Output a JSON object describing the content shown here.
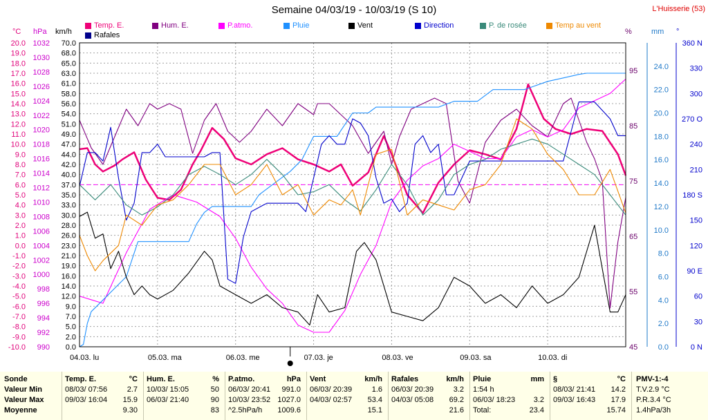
{
  "header": {
    "title": "Semaine 04/03/19 - 10/03/19 (S 10)",
    "station": "L'Huisserie (53)"
  },
  "legend": [
    {
      "label": "Temp. E.",
      "color": "#ee0077"
    },
    {
      "label": "Hum. E.",
      "color": "#800080"
    },
    {
      "label": "P.atmo.",
      "color": "#ff00ff"
    },
    {
      "label": "Pluie",
      "color": "#1e90ff"
    },
    {
      "label": "Vent",
      "color": "#000000"
    },
    {
      "label": "Direction",
      "color": "#0000cc"
    },
    {
      "label": "P. de rosée",
      "color": "#3a8a7a"
    },
    {
      "label": "Temp au vent",
      "color": "#ee8800"
    },
    {
      "label": "Rafales",
      "color": "#00008b"
    }
  ],
  "axis_units": {
    "temp": "°C",
    "press": "hPa",
    "wind": "km/h",
    "hum": "%",
    "rain": "mm",
    "dir": "°"
  },
  "colors": {
    "temp_axis": "#e0007a",
    "press_axis": "#cc00cc",
    "wind_axis": "#000000",
    "hum_axis": "#6a006a",
    "rain_axis": "#1e78c8",
    "dir_axis": "#0000cc",
    "grid": "#a0a0a0",
    "frame": "#000000",
    "ref_line": "#ff00ff"
  },
  "chart_data": {
    "type": "line",
    "x_labels": [
      "04.03. lu",
      "05.03. ma",
      "06.03. me",
      "07.03. je",
      "08.03. ve",
      "09.03. sa",
      "10.03. di"
    ],
    "grid": true,
    "axes": {
      "temp": {
        "unit": "°C",
        "range": [
          -10,
          20
        ],
        "ticks": [
          "20.0",
          "19.0",
          "18.0",
          "17.0",
          "16.0",
          "15.0",
          "14.0",
          "13.0",
          "12.0",
          "11.0",
          "10.0",
          "9.0",
          "8.0",
          "7.0",
          "6.0",
          "5.0",
          "4.0",
          "3.0",
          "2.0",
          "1.0",
          "0.0",
          "-1.0",
          "-2.0",
          "-3.0",
          "-4.0",
          "-5.0",
          "-6.0",
          "-7.0",
          "-8.0",
          "-9.0",
          "-10.0"
        ]
      },
      "press": {
        "unit": "hPa",
        "range": [
          990,
          1032
        ],
        "ticks": [
          "1032",
          "1030",
          "1028",
          "1026",
          "1024",
          "1022",
          "1020",
          "1018",
          "1016",
          "1014",
          "1012",
          "1010",
          "1008",
          "1006",
          "1004",
          "1002",
          "1000",
          "998",
          "996",
          "994",
          "992",
          "990"
        ]
      },
      "wind": {
        "unit": "km/h",
        "range": [
          0,
          70
        ],
        "ticks": [
          "70.0",
          "68.0",
          "65.0",
          "63.0",
          "61.0",
          "58.0",
          "56.0",
          "54.0",
          "51.0",
          "49.0",
          "47.0",
          "44.0",
          "42.0",
          "40.0",
          "37.0",
          "35.0",
          "33.0",
          "30.0",
          "28.0",
          "26.0",
          "23.0",
          "21.0",
          "19.0",
          "16.0",
          "14.0",
          "12.0",
          "9.0",
          "7.0",
          "5.0",
          "2.0",
          "0.0"
        ]
      },
      "hum": {
        "unit": "%",
        "range": [
          45,
          100
        ],
        "ticks": [
          "95",
          "85",
          "75",
          "65",
          "55",
          "45"
        ]
      },
      "rain": {
        "unit": "mm",
        "range": [
          0,
          26
        ],
        "ticks": [
          "24.0",
          "22.0",
          "20.0",
          "18.0",
          "16.0",
          "14.0",
          "12.0",
          "10.0",
          "8.0",
          "6.0",
          "4.0",
          "2.0",
          "0.0"
        ]
      },
      "dir": {
        "unit": "°",
        "range": [
          0,
          360
        ],
        "ticks": [
          "360 N",
          "330",
          "300",
          "270 O",
          "240",
          "210",
          "180 S",
          "150",
          "120",
          "90 E",
          "60",
          "30",
          "0 N"
        ]
      }
    },
    "series": [
      {
        "name": "Temp. E.",
        "axis": "temp",
        "x": [
          0,
          0.1,
          0.2,
          0.3,
          0.45,
          0.55,
          0.7,
          0.85,
          1.0,
          1.15,
          1.3,
          1.45,
          1.55,
          1.7,
          1.85,
          2.0,
          2.2,
          2.4,
          2.6,
          2.8,
          3.0,
          3.2,
          3.35,
          3.5,
          3.7,
          3.9,
          4.0,
          4.2,
          4.4,
          4.6,
          4.8,
          5.0,
          5.2,
          5.4,
          5.6,
          5.75,
          5.95,
          6.1,
          6.3,
          6.5,
          6.7,
          6.9,
          7.0
        ],
        "values": [
          9.5,
          9.6,
          8.0,
          7.3,
          7.9,
          8.5,
          9.2,
          6.5,
          4.7,
          4.5,
          5.5,
          8.0,
          9.3,
          11.6,
          10.5,
          8.6,
          8.0,
          9.0,
          9.6,
          8.5,
          8.0,
          7.3,
          8.0,
          5.9,
          7.2,
          10.8,
          9.0,
          5.0,
          3.2,
          6.2,
          8.0,
          9.4,
          9.0,
          8.5,
          11.5,
          15.9,
          12.5,
          11.5,
          11.0,
          11.5,
          11.3,
          9.0,
          6.9
        ]
      },
      {
        "name": "Hum. E.",
        "axis": "hum",
        "x": [
          0,
          0.15,
          0.3,
          0.45,
          0.6,
          0.75,
          0.9,
          1.0,
          1.15,
          1.3,
          1.45,
          1.6,
          1.75,
          1.9,
          2.05,
          2.2,
          2.4,
          2.6,
          2.8,
          3.0,
          3.05,
          3.2,
          3.35,
          3.5,
          3.7,
          3.9,
          4.0,
          4.1,
          4.25,
          4.4,
          4.55,
          4.7,
          4.85,
          5.0,
          5.2,
          5.4,
          5.6,
          5.8,
          6.0,
          6.2,
          6.3,
          6.5,
          6.6,
          6.7,
          6.8,
          6.9,
          7.0
        ],
        "values": [
          86,
          81,
          78,
          83,
          88,
          85,
          89,
          88,
          89,
          88,
          80,
          86,
          89,
          84,
          82,
          84,
          88,
          85,
          89,
          87,
          89,
          89,
          87,
          85,
          80,
          84,
          78,
          83,
          88,
          89,
          90,
          89,
          75,
          71,
          82,
          86,
          88,
          85,
          83,
          89,
          90,
          82,
          79,
          75,
          52,
          64,
          72
        ]
      },
      {
        "name": "P.atmo.",
        "axis": "press",
        "x": [
          0,
          0.3,
          0.6,
          0.9,
          1.2,
          1.5,
          1.8,
          2.0,
          2.2,
          2.4,
          2.6,
          2.8,
          3.0,
          3.2,
          3.4,
          3.6,
          3.8,
          4.0,
          4.2,
          4.4,
          4.6,
          4.8,
          5.0,
          5.2,
          5.4,
          5.6,
          5.8,
          6.0,
          6.2,
          6.4,
          6.6,
          6.8,
          7.0
        ],
        "values": [
          997,
          996,
          1003,
          1009,
          1011,
          1010,
          1008,
          1005,
          1001,
          998,
          996,
          993,
          992,
          992,
          995,
          1000,
          1004,
          1010,
          1013,
          1015,
          1016,
          1018,
          1017,
          1016,
          1016,
          1019,
          1020,
          1019,
          1020,
          1023,
          1024,
          1025,
          1027
        ]
      },
      {
        "name": "Pluie",
        "axis": "rain",
        "x": [
          0,
          0.05,
          0.1,
          0.15,
          0.3,
          0.45,
          0.6,
          0.75,
          1.4,
          1.5,
          1.6,
          1.7,
          2.2,
          2.3,
          2.5,
          2.7,
          2.85,
          3.0,
          3.3,
          3.5,
          3.7,
          3.8,
          4.6,
          4.8,
          5.1,
          5.3,
          5.7,
          6.0,
          6.2,
          6.4,
          6.5,
          7.0
        ],
        "values": [
          0,
          0.2,
          2.0,
          3.0,
          4.0,
          5.0,
          6.0,
          9.0,
          9.0,
          10.5,
          11.5,
          12.0,
          12.0,
          13.0,
          14.0,
          15.0,
          16.0,
          18.0,
          18.0,
          20.0,
          20.0,
          20.5,
          20.5,
          21.0,
          21.0,
          22.0,
          22.0,
          22.7,
          23.0,
          23.3,
          23.4,
          23.4
        ]
      },
      {
        "name": "Vent",
        "axis": "wind",
        "x": [
          0,
          0.1,
          0.2,
          0.3,
          0.4,
          0.5,
          0.6,
          0.7,
          0.8,
          0.9,
          1.0,
          1.2,
          1.4,
          1.6,
          1.7,
          1.8,
          2.0,
          2.2,
          2.4,
          2.6,
          2.8,
          2.95,
          3.05,
          3.2,
          3.4,
          3.55,
          3.65,
          3.8,
          4.0,
          4.2,
          4.4,
          4.6,
          4.8,
          5.0,
          5.1,
          5.2,
          5.4,
          5.6,
          5.8,
          6.0,
          6.2,
          6.4,
          6.6,
          6.7,
          6.8,
          6.9,
          7.0
        ],
        "values": [
          30,
          31,
          25,
          26,
          18,
          22,
          16,
          12,
          14,
          12,
          11,
          13,
          17,
          22,
          20,
          14,
          12,
          10,
          12,
          9,
          8,
          5,
          12,
          8,
          9,
          22,
          24,
          20,
          8,
          7,
          6,
          9,
          16,
          14,
          12,
          10,
          12,
          9,
          14,
          10,
          12,
          16,
          28,
          18,
          8,
          8,
          12
        ]
      },
      {
        "name": "Direction",
        "axis": "dir",
        "x": [
          0,
          0.1,
          0.2,
          0.3,
          0.4,
          0.5,
          0.6,
          0.7,
          0.8,
          0.9,
          1.0,
          1.1,
          1.2,
          1.4,
          1.6,
          1.7,
          1.8,
          1.9,
          2.0,
          2.1,
          2.2,
          2.4,
          2.6,
          2.8,
          2.9,
          3.0,
          3.1,
          3.2,
          3.3,
          3.4,
          3.5,
          3.6,
          3.7,
          3.8,
          3.9,
          4.0,
          4.1,
          4.2,
          4.3,
          4.4,
          4.5,
          4.6,
          4.7,
          4.8,
          4.9,
          5.0,
          5.2,
          5.4,
          5.6,
          5.8,
          6.0,
          6.2,
          6.4,
          6.6,
          6.8,
          6.9,
          7.0
        ],
        "values": [
          190,
          230,
          230,
          220,
          260,
          200,
          150,
          170,
          230,
          230,
          240,
          225,
          225,
          225,
          225,
          230,
          230,
          80,
          75,
          130,
          160,
          170,
          170,
          170,
          160,
          200,
          240,
          250,
          240,
          240,
          270,
          265,
          250,
          200,
          170,
          175,
          160,
          170,
          240,
          250,
          230,
          240,
          180,
          180,
          200,
          220,
          220,
          220,
          220,
          220,
          220,
          220,
          290,
          290,
          270,
          250,
          250
        ]
      },
      {
        "name": "P. de rosée",
        "axis": "temp",
        "x": [
          0,
          0.2,
          0.4,
          0.6,
          0.8,
          1.0,
          1.2,
          1.4,
          1.6,
          1.8,
          2.0,
          2.2,
          2.4,
          2.6,
          2.8,
          3.0,
          3.2,
          3.4,
          3.6,
          3.8,
          4.0,
          4.2,
          4.4,
          4.6,
          4.8,
          5.0,
          5.2,
          5.4,
          5.6,
          5.8,
          6.0,
          6.2,
          6.4,
          6.6,
          6.8,
          7.0
        ],
        "values": [
          6.0,
          4.5,
          6.0,
          4.0,
          3.0,
          3.8,
          5.0,
          7.0,
          7.8,
          7.0,
          6.0,
          7.0,
          8.5,
          7.0,
          5.0,
          5.3,
          6.0,
          4.5,
          3.4,
          5.5,
          8.0,
          6.0,
          3.0,
          4.5,
          7.0,
          8.0,
          8.5,
          9.5,
          10.0,
          10.5,
          10.0,
          9.0,
          8.0,
          7.0,
          5.0,
          3.0
        ]
      },
      {
        "name": "Temp au vent",
        "axis": "temp",
        "x": [
          0,
          0.1,
          0.2,
          0.3,
          0.5,
          0.6,
          0.8,
          1.0,
          1.2,
          1.4,
          1.6,
          1.8,
          2.0,
          2.2,
          2.4,
          2.6,
          2.8,
          3.0,
          3.2,
          3.35,
          3.5,
          3.6,
          3.8,
          4.0,
          4.2,
          4.4,
          4.6,
          4.8,
          5.0,
          5.2,
          5.4,
          5.6,
          5.8,
          6.0,
          6.2,
          6.4,
          6.6,
          6.8,
          7.0
        ],
        "values": [
          1.0,
          -1.0,
          -2.5,
          -1.5,
          0.0,
          3.0,
          2.0,
          4.0,
          4.5,
          6.0,
          8.0,
          8.0,
          5.0,
          6.0,
          8.0,
          5.0,
          6.0,
          3.0,
          4.5,
          4.0,
          5.5,
          3.0,
          9.0,
          9.5,
          3.0,
          4.5,
          4.0,
          3.5,
          5.5,
          6.0,
          8.0,
          12.5,
          11.5,
          9.0,
          7.5,
          5.0,
          5.0,
          7.5,
          3.2
        ]
      }
    ],
    "reference_line": {
      "axis": "temp",
      "value": 6.0
    }
  },
  "table": {
    "sonde": {
      "head": "Sonde",
      "rows": [
        "Valeur Min",
        "Valeur Max",
        "Moyenne"
      ]
    },
    "columns": [
      {
        "name": "Temp. E.",
        "unit": "°C",
        "rows": [
          [
            "08/03/  07:56",
            "2.7"
          ],
          [
            "09/03/  16:04",
            "15.9"
          ],
          [
            "",
            "9.30"
          ]
        ]
      },
      {
        "name": "Hum. E.",
        "unit": "%",
        "rows": [
          [
            "10/03/  15:05",
            "50"
          ],
          [
            "06/03/  21:40",
            "90"
          ],
          [
            "",
            "83"
          ]
        ]
      },
      {
        "name": "P.atmo.",
        "unit": "hPa",
        "rows": [
          [
            "06/03/  20:41",
            "991.0"
          ],
          [
            "10/03/  23:52",
            "1027.0"
          ],
          [
            "^2.5hPa/h",
            "1009.6"
          ]
        ]
      },
      {
        "name": "Vent",
        "unit": "km/h",
        "rows": [
          [
            "06/03/  20:39",
            "1.6"
          ],
          [
            "04/03/  02:57",
            "53.4"
          ],
          [
            "",
            "15.1"
          ]
        ]
      },
      {
        "name": "Rafales",
        "unit": "km/h",
        "rows": [
          [
            "06/03/  20:39",
            "3.2"
          ],
          [
            "04/03/  05:08",
            "69.2"
          ],
          [
            "",
            "21.6"
          ]
        ]
      },
      {
        "name": "Pluie",
        "unit": "mm",
        "rows": [
          [
            "1:54 h",
            ""
          ],
          [
            "06/03/  18:23",
            "3.2"
          ],
          [
            "Total:",
            "23.4"
          ]
        ]
      },
      {
        "name": "§",
        "unit": "°C",
        "rows": [
          [
            "08/03/  21:41",
            "14.2"
          ],
          [
            "09/03/  16:43",
            "17.9"
          ],
          [
            "",
            "15.74"
          ]
        ]
      }
    ],
    "pmv": {
      "head": "PMV-1:-4",
      "rows": [
        "T.V.2.9 °C",
        "P.R.3.4 °C",
        "1.4hPa/3h"
      ]
    }
  }
}
